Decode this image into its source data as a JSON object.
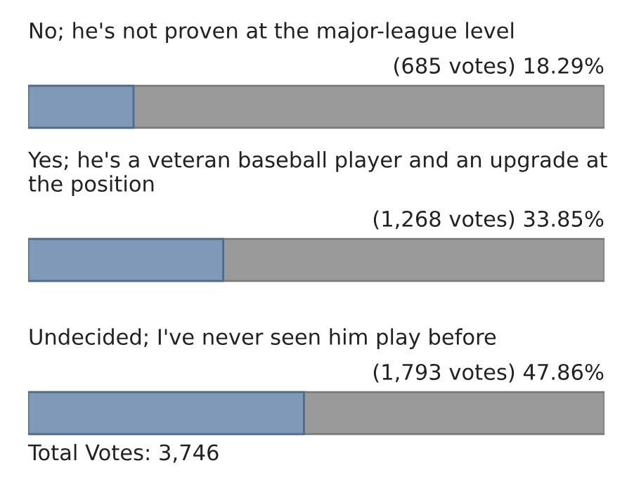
{
  "chart_data": {
    "type": "bar",
    "orientation": "horizontal",
    "categories": [
      "No; he's not proven at the major-league level",
      "Yes; he's a veteran baseball player and an upgrade at the position",
      "Undecided; I've never seen him play before"
    ],
    "values": [
      18.29,
      33.85,
      47.86
    ],
    "value_labels": [
      "(685 votes) 18.29%",
      "(1,268 votes) 33.85%",
      "(1,793 votes) 47.86%"
    ],
    "color": "#8199b8",
    "xlim": [
      0,
      100
    ],
    "annotations": [
      "Total Votes: 3,746"
    ]
  }
}
